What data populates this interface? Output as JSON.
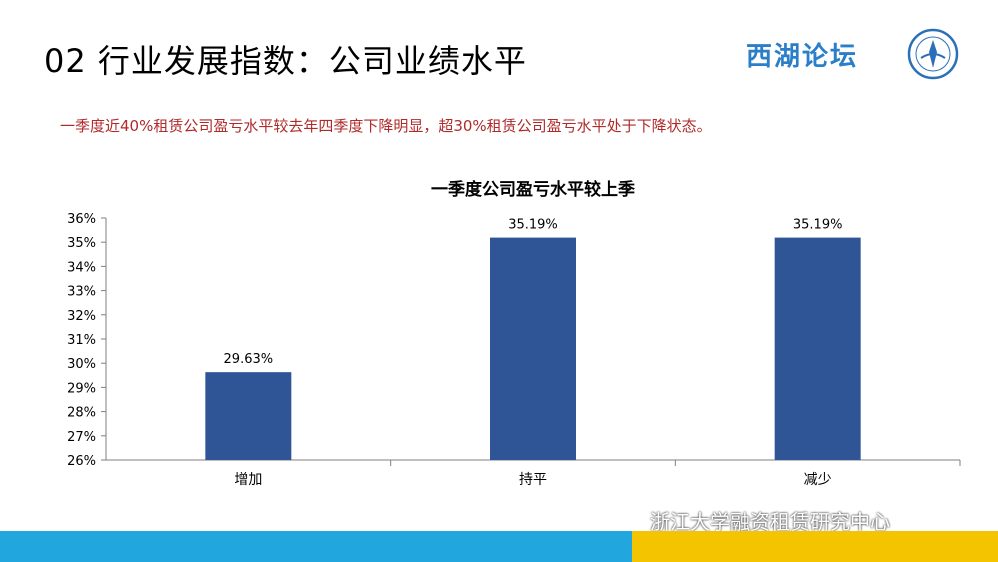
{
  "slide": {
    "title": "02 行业发展指数：公司业绩水平",
    "brand": "西湖论坛",
    "subtitle": "一季度近40%租赁公司盈亏水平较去年四季度下降明显，超30%租赁公司盈亏水平处于下降状态。",
    "watermark": "浙江大学融资租赁研究中心"
  },
  "chart_data": {
    "type": "bar",
    "title": "一季度公司盈亏水平较上季",
    "categories": [
      "增加",
      "持平",
      "减少"
    ],
    "values": [
      29.63,
      35.19,
      35.19
    ],
    "value_labels": [
      "29.63%",
      "35.19%",
      "35.19%"
    ],
    "ylim": [
      26,
      36
    ],
    "yticks": [
      "26%",
      "27%",
      "28%",
      "29%",
      "30%",
      "31%",
      "32%",
      "33%",
      "34%",
      "35%",
      "36%"
    ],
    "bar_color": "#2f5597",
    "grid": false,
    "legend": "none"
  },
  "colors": {
    "subtitle": "#b02a2a",
    "brand": "#2a7fc8",
    "footer_blue": "#22a6de",
    "footer_yellow": "#f5c400"
  },
  "icons": {
    "seal": "university-seal-icon",
    "wechat": "wechat-icon"
  }
}
